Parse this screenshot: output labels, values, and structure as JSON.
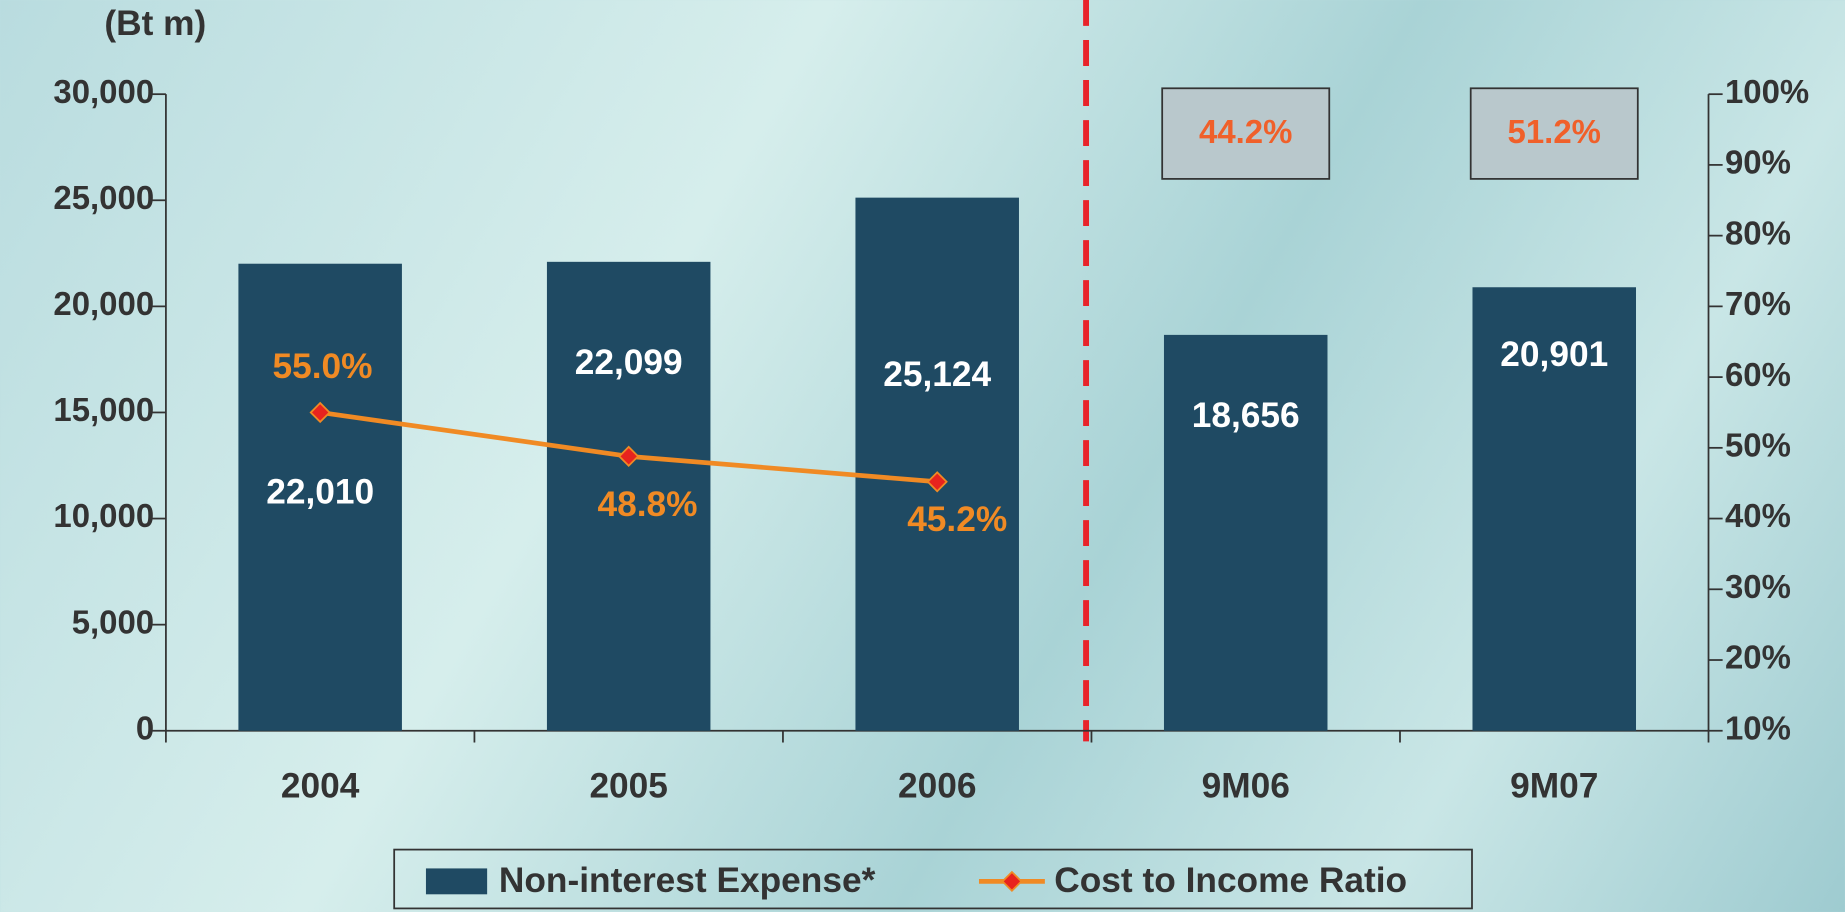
{
  "chart_data": {
    "type": "bar",
    "y_axis_label": "(Bt m)",
    "categories": [
      "2004",
      "2005",
      "2006",
      "9M06",
      "9M07"
    ],
    "series": [
      {
        "name": "Non-interest Expense*",
        "type": "bar",
        "color": "#1f4a63",
        "values": [
          22010,
          22099,
          25124,
          18656,
          20901
        ],
        "value_labels": [
          "22,010",
          "22,099",
          "25,124",
          "18,656",
          "20,901"
        ]
      },
      {
        "name": "Cost to Income Ratio",
        "type": "line",
        "axis": "y2",
        "color": "#f08a24",
        "marker_color": "#e8231e",
        "values": [
          55.0,
          48.8,
          45.2,
          null,
          null
        ],
        "value_labels": [
          "55.0%",
          "48.8%",
          "45.2%",
          null,
          null
        ]
      }
    ],
    "annotations": [
      {
        "category": "9M06",
        "text": "44.2%"
      },
      {
        "category": "9M07",
        "text": "51.2%"
      }
    ],
    "ylim": [
      0,
      30000
    ],
    "yticks": [
      0,
      {
        "value": 5000,
        "label": "5,000"
      },
      {
        "value": 10000,
        "label": "10,000"
      },
      {
        "value": 15000,
        "label": "15,000"
      },
      {
        "value": 20000,
        "label": "20,000"
      },
      {
        "value": 25000,
        "label": "25,000"
      },
      {
        "value": 30000,
        "label": "30,000"
      }
    ],
    "y2lim": [
      10,
      100
    ],
    "y2ticks": [
      {
        "value": 10,
        "label": "10%"
      },
      {
        "value": 20,
        "label": "20%"
      },
      {
        "value": 30,
        "label": "30%"
      },
      {
        "value": 40,
        "label": "40%"
      },
      {
        "value": 50,
        "label": "50%"
      },
      {
        "value": 60,
        "label": "60%"
      },
      {
        "value": 70,
        "label": "70%"
      },
      {
        "value": 80,
        "label": "80%"
      },
      {
        "value": 90,
        "label": "90%"
      },
      {
        "value": 100,
        "label": "100%"
      }
    ],
    "grid": false,
    "legend": "bottom"
  }
}
